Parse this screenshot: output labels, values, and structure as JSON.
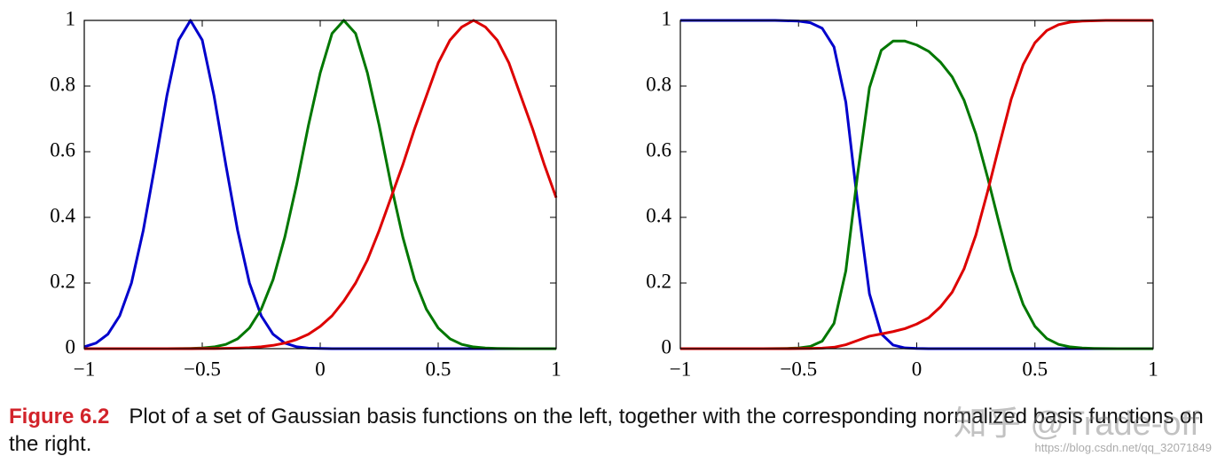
{
  "chart_data": [
    {
      "type": "line",
      "x": [
        -1,
        -0.95,
        -0.9,
        -0.85,
        -0.8,
        -0.75,
        -0.7,
        -0.65,
        -0.6,
        -0.55,
        -0.5,
        -0.45,
        -0.4,
        -0.35,
        -0.3,
        -0.25,
        -0.2,
        -0.15,
        -0.1,
        -0.05,
        0,
        0.05,
        0.1,
        0.15,
        0.2,
        0.25,
        0.3,
        0.35,
        0.4,
        0.45,
        0.5,
        0.55,
        0.6,
        0.65,
        0.7,
        0.75,
        0.8,
        0.85,
        0.9,
        0.95,
        1
      ],
      "series": [
        {
          "color": "#0000cc",
          "values": [
            0.0057,
            0.017,
            0.044,
            0.1,
            0.2,
            0.36,
            0.56,
            0.77,
            0.94,
            1,
            0.94,
            0.77,
            0.56,
            0.36,
            0.2,
            0.1,
            0.044,
            0.017,
            0.0057,
            0.0017,
            0.0005,
            0,
            0,
            0,
            0,
            0,
            0,
            0,
            0,
            0,
            0,
            0,
            0,
            0,
            0,
            0,
            0,
            0,
            0,
            0,
            0
          ]
        },
        {
          "color": "#007700",
          "values": [
            0,
            0,
            0,
            0,
            0,
            0,
            0,
            0,
            0.0002,
            0.0007,
            0.002,
            0.0053,
            0.013,
            0.03,
            0.063,
            0.12,
            0.21,
            0.34,
            0.5,
            0.68,
            0.84,
            0.96,
            1,
            0.96,
            0.84,
            0.68,
            0.5,
            0.34,
            0.21,
            0.12,
            0.063,
            0.03,
            0.013,
            0.0053,
            0.002,
            0.0007,
            0.0002,
            0,
            0,
            0,
            0
          ]
        },
        {
          "color": "#dd0000",
          "values": [
            0,
            0,
            0,
            0,
            0,
            0,
            0,
            0,
            0,
            0.0001,
            0.0002,
            0.0004,
            0.0009,
            0.0017,
            0.0032,
            0.0057,
            0.01,
            0.017,
            0.028,
            0.044,
            0.068,
            0.1,
            0.145,
            0.2,
            0.27,
            0.36,
            0.46,
            0.56,
            0.67,
            0.77,
            0.87,
            0.94,
            0.98,
            1,
            0.98,
            0.94,
            0.87,
            0.77,
            0.67,
            0.56,
            0.46
          ]
        }
      ],
      "xlim": [
        -1,
        1
      ],
      "xticks": [
        {
          "value": -1,
          "label": "−1"
        },
        {
          "value": -0.5,
          "label": "−0.5"
        },
        0,
        0.5,
        1
      ],
      "ylim": [
        0,
        1
      ],
      "yticks": [
        0,
        0.2,
        0.4,
        0.6,
        0.8,
        1
      ]
    },
    {
      "type": "line",
      "x": [
        -1,
        -0.95,
        -0.9,
        -0.85,
        -0.8,
        -0.75,
        -0.7,
        -0.65,
        -0.6,
        -0.55,
        -0.5,
        -0.45,
        -0.4,
        -0.35,
        -0.3,
        -0.25,
        -0.2,
        -0.15,
        -0.1,
        -0.05,
        0,
        0.05,
        0.1,
        0.15,
        0.2,
        0.25,
        0.3,
        0.35,
        0.4,
        0.45,
        0.5,
        0.55,
        0.6,
        0.65,
        0.7,
        0.75,
        0.8,
        0.85,
        0.9,
        0.95,
        1
      ],
      "series": [
        {
          "color": "#0000cc",
          "values": [
            1,
            1,
            1,
            1,
            1,
            1,
            1,
            1,
            1,
            0.999,
            0.998,
            0.993,
            0.976,
            0.919,
            0.751,
            0.443,
            0.167,
            0.045,
            0.011,
            0.0023,
            0.0006,
            0,
            0,
            0,
            0,
            0,
            0,
            0,
            0,
            0,
            0,
            0,
            0,
            0,
            0,
            0,
            0,
            0,
            0,
            0,
            0
          ]
        },
        {
          "color": "#007700",
          "values": [
            0,
            0,
            0,
            0,
            0,
            0,
            0,
            0,
            0.0002,
            0.0007,
            0.002,
            0.0068,
            0.023,
            0.077,
            0.237,
            0.532,
            0.795,
            0.909,
            0.937,
            0.937,
            0.925,
            0.906,
            0.873,
            0.828,
            0.757,
            0.654,
            0.521,
            0.378,
            0.239,
            0.135,
            0.068,
            0.031,
            0.013,
            0.0053,
            0.002,
            0.0007,
            0.0002,
            0,
            0,
            0,
            0
          ]
        },
        {
          "color": "#dd0000",
          "values": [
            0,
            0,
            0,
            0,
            0,
            0,
            0,
            0,
            0,
            0.0001,
            0.0002,
            0.0005,
            0.0016,
            0.0043,
            0.012,
            0.025,
            0.038,
            0.045,
            0.052,
            0.061,
            0.075,
            0.094,
            0.127,
            0.172,
            0.243,
            0.346,
            0.479,
            0.622,
            0.761,
            0.865,
            0.932,
            0.969,
            0.987,
            0.995,
            0.998,
            0.999,
            1,
            1,
            1,
            1,
            1
          ]
        }
      ],
      "xlim": [
        -1,
        1
      ],
      "xticks": [
        {
          "value": -1,
          "label": "−1"
        },
        {
          "value": -0.5,
          "label": "−0.5"
        },
        0,
        0.5,
        1
      ],
      "ylim": [
        0,
        1
      ],
      "yticks": [
        0,
        0.2,
        0.4,
        0.6,
        0.8,
        1
      ]
    }
  ],
  "caption": {
    "label": "Figure 6.2",
    "text": "Plot of a set of Gaussian basis functions on the left, together with the corresponding normalized basis functions on the right."
  },
  "watermark": {
    "site": "知乎 @Trade-off",
    "url": "https://blog.csdn.net/qq_32071849"
  }
}
